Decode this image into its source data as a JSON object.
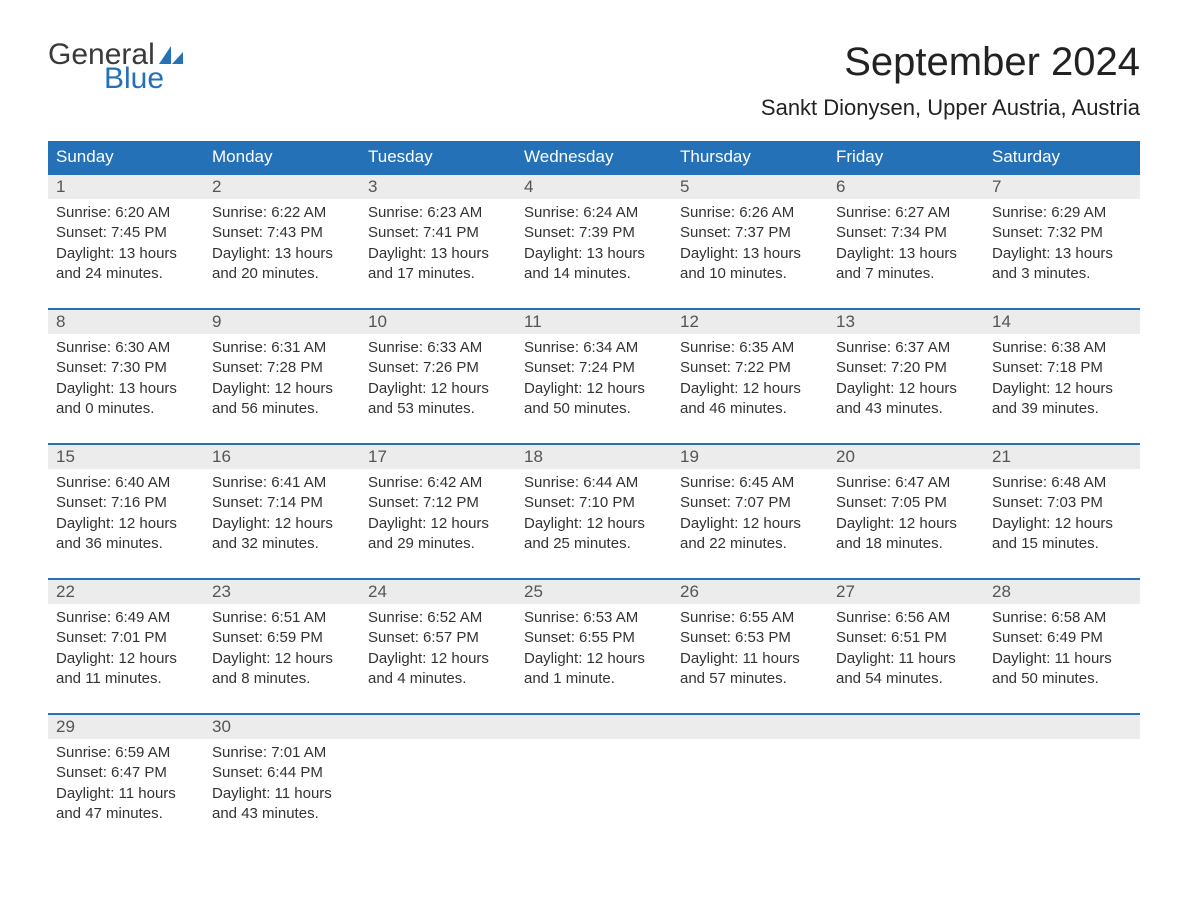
{
  "brand": {
    "text1": "General",
    "text2": "Blue",
    "color_general": "#3a3a3a",
    "color_blue": "#2571b8"
  },
  "header": {
    "month_title": "September 2024",
    "location": "Sankt Dionysen, Upper Austria, Austria"
  },
  "colors": {
    "header_bg": "#2571b8",
    "header_text": "#ffffff",
    "daynum_bg": "#ececec",
    "daynum_text": "#555555",
    "row_border": "#2571b8",
    "body_text": "#333333",
    "page_bg": "#ffffff"
  },
  "day_headers": [
    "Sunday",
    "Monday",
    "Tuesday",
    "Wednesday",
    "Thursday",
    "Friday",
    "Saturday"
  ],
  "weeks": [
    [
      {
        "n": "1",
        "sunrise": "Sunrise: 6:20 AM",
        "sunset": "Sunset: 7:45 PM",
        "d1": "Daylight: 13 hours",
        "d2": "and 24 minutes."
      },
      {
        "n": "2",
        "sunrise": "Sunrise: 6:22 AM",
        "sunset": "Sunset: 7:43 PM",
        "d1": "Daylight: 13 hours",
        "d2": "and 20 minutes."
      },
      {
        "n": "3",
        "sunrise": "Sunrise: 6:23 AM",
        "sunset": "Sunset: 7:41 PM",
        "d1": "Daylight: 13 hours",
        "d2": "and 17 minutes."
      },
      {
        "n": "4",
        "sunrise": "Sunrise: 6:24 AM",
        "sunset": "Sunset: 7:39 PM",
        "d1": "Daylight: 13 hours",
        "d2": "and 14 minutes."
      },
      {
        "n": "5",
        "sunrise": "Sunrise: 6:26 AM",
        "sunset": "Sunset: 7:37 PM",
        "d1": "Daylight: 13 hours",
        "d2": "and 10 minutes."
      },
      {
        "n": "6",
        "sunrise": "Sunrise: 6:27 AM",
        "sunset": "Sunset: 7:34 PM",
        "d1": "Daylight: 13 hours",
        "d2": "and 7 minutes."
      },
      {
        "n": "7",
        "sunrise": "Sunrise: 6:29 AM",
        "sunset": "Sunset: 7:32 PM",
        "d1": "Daylight: 13 hours",
        "d2": "and 3 minutes."
      }
    ],
    [
      {
        "n": "8",
        "sunrise": "Sunrise: 6:30 AM",
        "sunset": "Sunset: 7:30 PM",
        "d1": "Daylight: 13 hours",
        "d2": "and 0 minutes."
      },
      {
        "n": "9",
        "sunrise": "Sunrise: 6:31 AM",
        "sunset": "Sunset: 7:28 PM",
        "d1": "Daylight: 12 hours",
        "d2": "and 56 minutes."
      },
      {
        "n": "10",
        "sunrise": "Sunrise: 6:33 AM",
        "sunset": "Sunset: 7:26 PM",
        "d1": "Daylight: 12 hours",
        "d2": "and 53 minutes."
      },
      {
        "n": "11",
        "sunrise": "Sunrise: 6:34 AM",
        "sunset": "Sunset: 7:24 PM",
        "d1": "Daylight: 12 hours",
        "d2": "and 50 minutes."
      },
      {
        "n": "12",
        "sunrise": "Sunrise: 6:35 AM",
        "sunset": "Sunset: 7:22 PM",
        "d1": "Daylight: 12 hours",
        "d2": "and 46 minutes."
      },
      {
        "n": "13",
        "sunrise": "Sunrise: 6:37 AM",
        "sunset": "Sunset: 7:20 PM",
        "d1": "Daylight: 12 hours",
        "d2": "and 43 minutes."
      },
      {
        "n": "14",
        "sunrise": "Sunrise: 6:38 AM",
        "sunset": "Sunset: 7:18 PM",
        "d1": "Daylight: 12 hours",
        "d2": "and 39 minutes."
      }
    ],
    [
      {
        "n": "15",
        "sunrise": "Sunrise: 6:40 AM",
        "sunset": "Sunset: 7:16 PM",
        "d1": "Daylight: 12 hours",
        "d2": "and 36 minutes."
      },
      {
        "n": "16",
        "sunrise": "Sunrise: 6:41 AM",
        "sunset": "Sunset: 7:14 PM",
        "d1": "Daylight: 12 hours",
        "d2": "and 32 minutes."
      },
      {
        "n": "17",
        "sunrise": "Sunrise: 6:42 AM",
        "sunset": "Sunset: 7:12 PM",
        "d1": "Daylight: 12 hours",
        "d2": "and 29 minutes."
      },
      {
        "n": "18",
        "sunrise": "Sunrise: 6:44 AM",
        "sunset": "Sunset: 7:10 PM",
        "d1": "Daylight: 12 hours",
        "d2": "and 25 minutes."
      },
      {
        "n": "19",
        "sunrise": "Sunrise: 6:45 AM",
        "sunset": "Sunset: 7:07 PM",
        "d1": "Daylight: 12 hours",
        "d2": "and 22 minutes."
      },
      {
        "n": "20",
        "sunrise": "Sunrise: 6:47 AM",
        "sunset": "Sunset: 7:05 PM",
        "d1": "Daylight: 12 hours",
        "d2": "and 18 minutes."
      },
      {
        "n": "21",
        "sunrise": "Sunrise: 6:48 AM",
        "sunset": "Sunset: 7:03 PM",
        "d1": "Daylight: 12 hours",
        "d2": "and 15 minutes."
      }
    ],
    [
      {
        "n": "22",
        "sunrise": "Sunrise: 6:49 AM",
        "sunset": "Sunset: 7:01 PM",
        "d1": "Daylight: 12 hours",
        "d2": "and 11 minutes."
      },
      {
        "n": "23",
        "sunrise": "Sunrise: 6:51 AM",
        "sunset": "Sunset: 6:59 PM",
        "d1": "Daylight: 12 hours",
        "d2": "and 8 minutes."
      },
      {
        "n": "24",
        "sunrise": "Sunrise: 6:52 AM",
        "sunset": "Sunset: 6:57 PM",
        "d1": "Daylight: 12 hours",
        "d2": "and 4 minutes."
      },
      {
        "n": "25",
        "sunrise": "Sunrise: 6:53 AM",
        "sunset": "Sunset: 6:55 PM",
        "d1": "Daylight: 12 hours",
        "d2": "and 1 minute."
      },
      {
        "n": "26",
        "sunrise": "Sunrise: 6:55 AM",
        "sunset": "Sunset: 6:53 PM",
        "d1": "Daylight: 11 hours",
        "d2": "and 57 minutes."
      },
      {
        "n": "27",
        "sunrise": "Sunrise: 6:56 AM",
        "sunset": "Sunset: 6:51 PM",
        "d1": "Daylight: 11 hours",
        "d2": "and 54 minutes."
      },
      {
        "n": "28",
        "sunrise": "Sunrise: 6:58 AM",
        "sunset": "Sunset: 6:49 PM",
        "d1": "Daylight: 11 hours",
        "d2": "and 50 minutes."
      }
    ],
    [
      {
        "n": "29",
        "sunrise": "Sunrise: 6:59 AM",
        "sunset": "Sunset: 6:47 PM",
        "d1": "Daylight: 11 hours",
        "d2": "and 47 minutes."
      },
      {
        "n": "30",
        "sunrise": "Sunrise: 7:01 AM",
        "sunset": "Sunset: 6:44 PM",
        "d1": "Daylight: 11 hours",
        "d2": "and 43 minutes."
      },
      null,
      null,
      null,
      null,
      null
    ]
  ]
}
